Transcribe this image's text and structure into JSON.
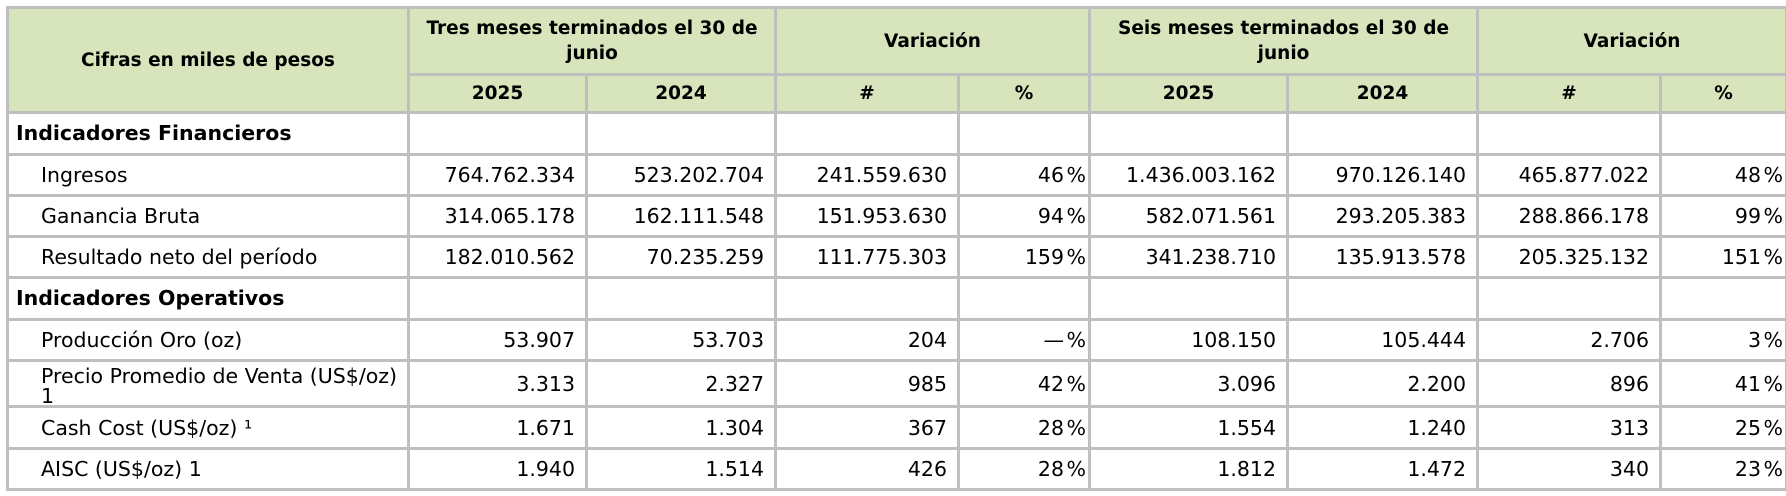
{
  "header": {
    "unit_label": "Cifras en miles de pesos",
    "three_months": "Tres meses terminados el 30 de junio",
    "variation": "Variación",
    "six_months": "Seis meses terminados el 30 de junio",
    "variation2": "Variación",
    "sub": [
      "2025",
      "2024",
      "#",
      "%",
      "2025",
      "2024",
      "#",
      "%"
    ]
  },
  "sections": {
    "financial": "Indicadores Financieros",
    "operational": "Indicadores Operativos"
  },
  "percent_sign": "%",
  "rows": [
    {
      "label": "Ingresos",
      "values": [
        "764.762.334",
        "523.202.704",
        "241.559.630",
        "46",
        "1.436.003.162",
        "970.126.140",
        "465.877.022",
        "48"
      ]
    },
    {
      "label": "Ganancia Bruta",
      "values": [
        "314.065.178",
        "162.111.548",
        "151.953.630",
        "94",
        "582.071.561",
        "293.205.383",
        "288.866.178",
        "99"
      ]
    },
    {
      "label": "Resultado neto del período",
      "values": [
        "182.010.562",
        "70.235.259",
        "111.775.303",
        "159",
        "341.238.710",
        "135.913.578",
        "205.325.132",
        "151"
      ]
    },
    {
      "label": "Producción Oro (oz)",
      "values": [
        "53.907",
        "53.703",
        "204",
        "—",
        "108.150",
        "105.444",
        "2.706",
        "3"
      ]
    },
    {
      "label": "Precio Promedio de Venta (US$/oz) 1",
      "values": [
        "3.313",
        "2.327",
        "985",
        "42",
        "3.096",
        "2.200",
        "896",
        "41"
      ]
    },
    {
      "label": "Cash Cost (US$/oz) ¹",
      "values": [
        "1.671",
        "1.304",
        "367",
        "28",
        "1.554",
        "1.240",
        "313",
        "25"
      ]
    },
    {
      "label": "AISC (US$/oz) 1",
      "values": [
        "1.940",
        "1.514",
        "426",
        "28",
        "1.812",
        "1.472",
        "340",
        "23"
      ]
    }
  ]
}
